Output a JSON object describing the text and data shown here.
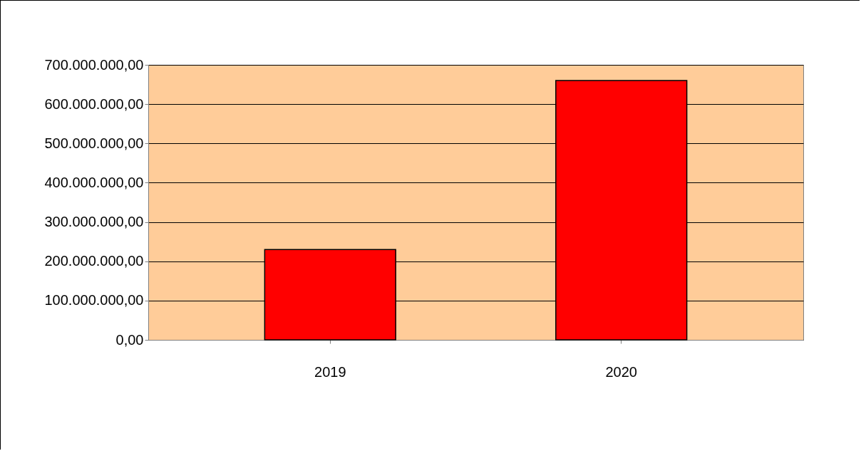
{
  "chart_data": {
    "type": "bar",
    "categories": [
      "2019",
      "2020"
    ],
    "values": [
      230000000,
      660000000
    ],
    "color": "#ff0000",
    "ylim": [
      0,
      700000000
    ],
    "yticks": [
      {
        "value": 0,
        "label": "0,00"
      },
      {
        "value": 100000000,
        "label": "100.000.000,00"
      },
      {
        "value": 200000000,
        "label": "200.000.000,00"
      },
      {
        "value": 300000000,
        "label": "300.000.000,00"
      },
      {
        "value": 400000000,
        "label": "400.000.000,00"
      },
      {
        "value": 500000000,
        "label": "500.000.000,00"
      },
      {
        "value": 600000000,
        "label": "600.000.000,00"
      },
      {
        "value": 700000000,
        "label": "700.000.000,00"
      }
    ],
    "grid": "y"
  }
}
